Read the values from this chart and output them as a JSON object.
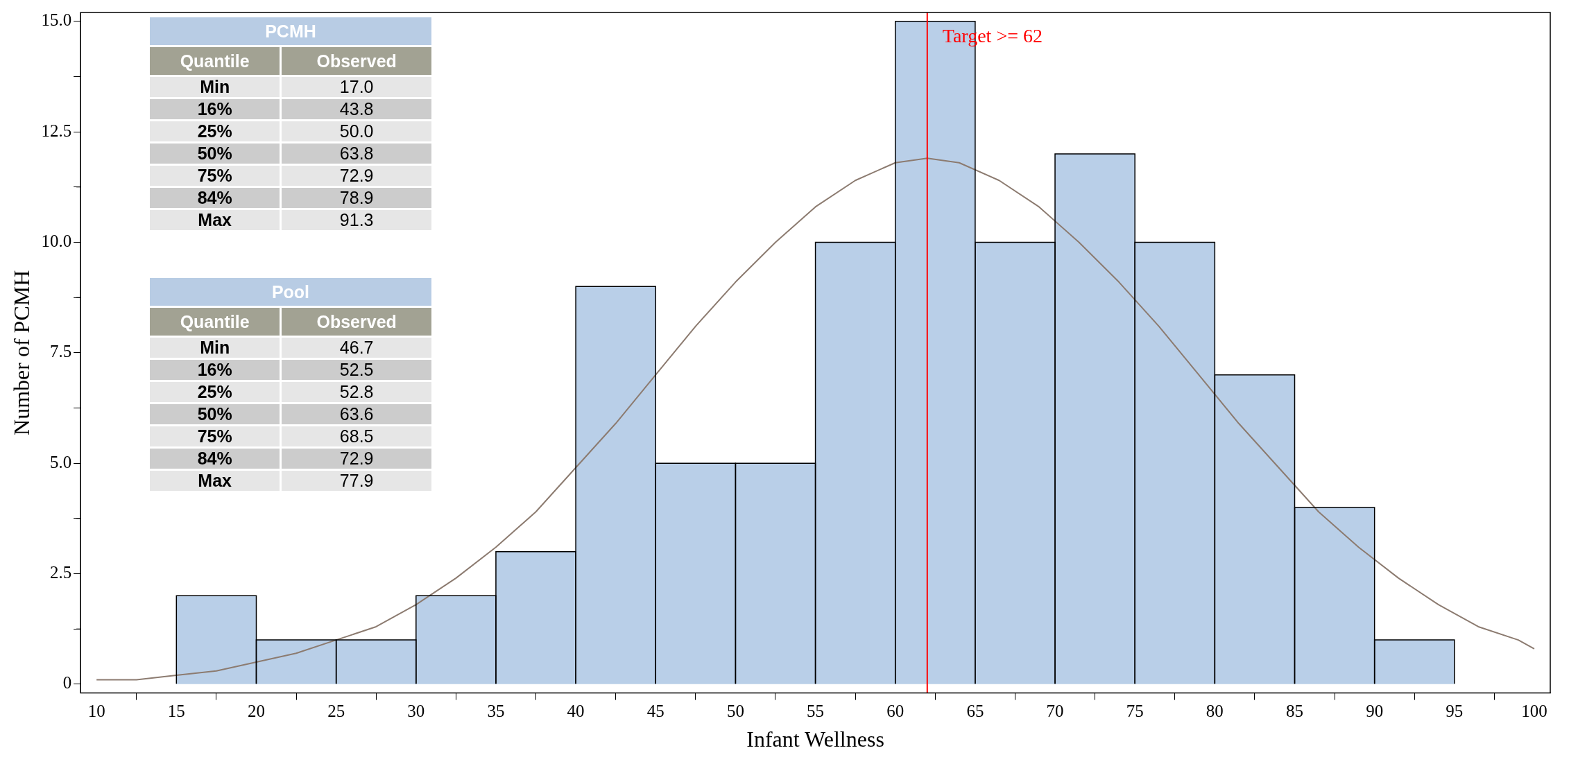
{
  "chart_data": {
    "type": "histogram",
    "xlabel": "Infant Wellness",
    "ylabel": "Number of PCMH",
    "bins": [
      15,
      20,
      25,
      30,
      35,
      40,
      45,
      50,
      55,
      60,
      65,
      70,
      75,
      80,
      85,
      90,
      95
    ],
    "values": [
      2,
      1,
      1,
      2,
      3,
      9,
      5,
      5,
      10,
      15,
      10,
      12,
      10,
      7,
      4,
      1
    ],
    "color": "#b9cfe8",
    "series": [
      {
        "type": "line",
        "color": "#8c7b70",
        "x": [
          10,
          12.5,
          15,
          17.5,
          20,
          22.5,
          25,
          27.5,
          30,
          32.5,
          35,
          37.5,
          40,
          42.5,
          45,
          47.5,
          50,
          52.5,
          55,
          57.5,
          60,
          62,
          64,
          66.5,
          69,
          71.5,
          74,
          76.5,
          79,
          81.5,
          84,
          86.5,
          89,
          91.5,
          94,
          96.5,
          99,
          100
        ],
        "values": [
          0.1,
          0.1,
          0.2,
          0.3,
          0.5,
          0.7,
          1.0,
          1.3,
          1.8,
          2.4,
          3.1,
          3.9,
          4.9,
          5.9,
          7.0,
          8.1,
          9.1,
          10.0,
          10.8,
          11.4,
          11.8,
          11.9,
          11.8,
          11.4,
          10.8,
          10.0,
          9.1,
          8.1,
          7.0,
          5.9,
          4.9,
          3.9,
          3.1,
          2.4,
          1.8,
          1.3,
          1.0,
          0.8
        ]
      }
    ],
    "xlim": [
      9,
      101
    ],
    "xticks": [
      10,
      15,
      20,
      25,
      30,
      35,
      40,
      45,
      50,
      55,
      60,
      65,
      70,
      75,
      80,
      85,
      90,
      95,
      100
    ],
    "ylim": [
      -0.2,
      15.2
    ],
    "yticks": [
      0,
      {
        "value": 1.25,
        "label": null
      },
      {
        "value": 2.5,
        "label": "2.5"
      },
      {
        "value": 3.75,
        "label": null
      },
      {
        "value": 5,
        "label": "5.0"
      },
      {
        "value": 6.25,
        "label": null
      },
      {
        "value": 7.5,
        "label": "7.5"
      },
      {
        "value": 8.75,
        "label": null
      },
      {
        "value": 10,
        "label": "10.0"
      },
      {
        "value": 11.25,
        "label": null
      },
      {
        "value": 12.5,
        "label": "12.5"
      },
      {
        "value": 13.75,
        "label": null
      },
      {
        "value": 15,
        "label": "15.0"
      }
    ],
    "ref_lines": [
      {
        "axis": "x",
        "value": 62,
        "label": "Target >= 62",
        "color": "#ff0000"
      }
    ],
    "grid": false,
    "legend": false,
    "annotations": [
      "PCMH",
      "Quantile",
      "Observed",
      "Min",
      "17.0",
      "16%",
      "43.8",
      "25%",
      "50.0",
      "50%",
      "63.8",
      "75%",
      "72.9",
      "84%",
      "78.9",
      "Max",
      "91.3",
      "Pool",
      "Quantile",
      "Observed",
      "Min",
      "46.7",
      "16%",
      "52.5",
      "25%",
      "52.8",
      "50%",
      "63.6",
      "75%",
      "68.5",
      "84%",
      "72.9",
      "Max",
      "77.9"
    ]
  }
}
